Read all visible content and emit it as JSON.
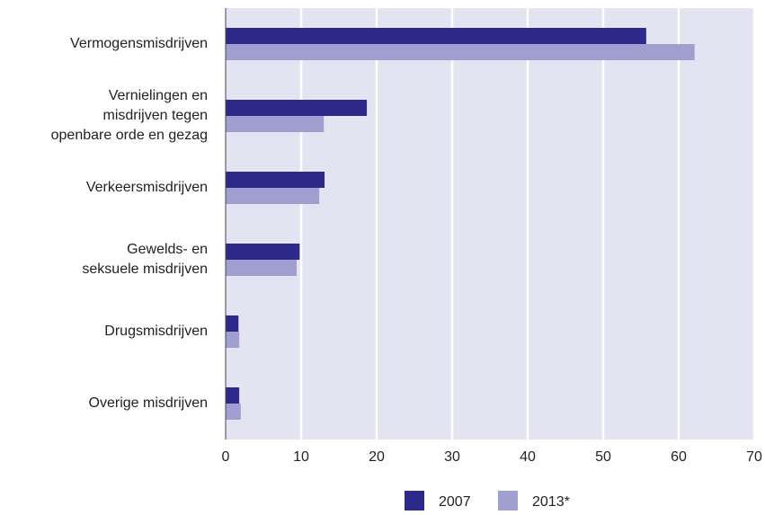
{
  "chart_data": {
    "type": "bar",
    "orientation": "horizontal",
    "categories": [
      "Vermogensmisdrijven",
      "Vernielingen en\nmisdrijven tegen\nopenbare orde en gezag",
      "Verkeersmisdrijven",
      "Gewelds- en\nseksuele misdrijven",
      "Drugsmisdrijven",
      "Overige misdrijven"
    ],
    "series": [
      {
        "name": "2007",
        "color": "#2e2a8c",
        "values": [
          55.7,
          18.7,
          13.1,
          9.8,
          1.7,
          1.8
        ]
      },
      {
        "name": "2013*",
        "color": "#a09fcf",
        "values": [
          62.1,
          13.0,
          12.4,
          9.4,
          1.8,
          2.0
        ]
      }
    ],
    "xlim": [
      0,
      70
    ],
    "xticks": [
      0,
      10,
      20,
      30,
      40,
      50,
      60,
      70
    ],
    "grid": true,
    "background": "#e4e3f1"
  }
}
